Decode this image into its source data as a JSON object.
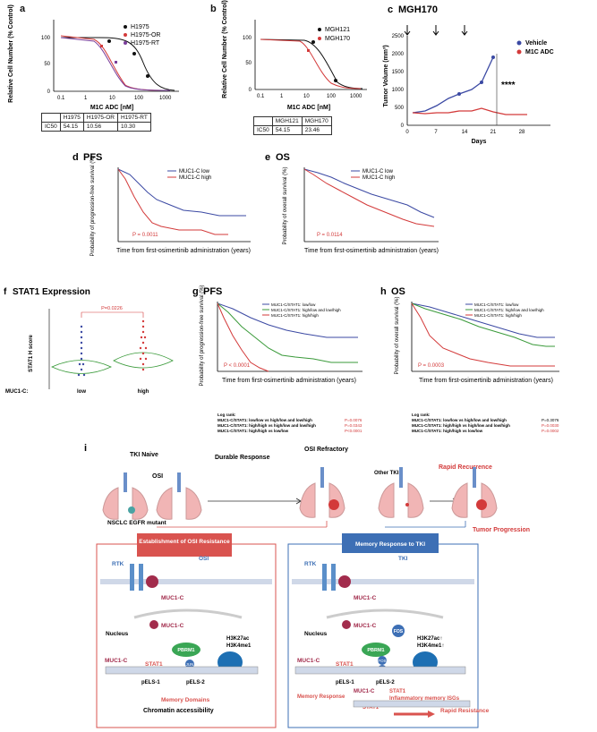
{
  "panel_a": {
    "label": "a",
    "ylabel": "Relative Cell Number (% Control)",
    "xlabel": "M1C ADC [nM]",
    "legend": [
      "H1975",
      "H1975-OR",
      "H1975-RT"
    ],
    "table_header": [
      "",
      "H1975",
      "H1975-OR",
      "H1975-RT"
    ],
    "table_row": [
      "IC50",
      "54.15",
      "10.56",
      "10.30"
    ],
    "yticks": [
      "0",
      "50",
      "100"
    ],
    "xticks": [
      "0.1",
      "1",
      "10",
      "100",
      "1000"
    ]
  },
  "panel_b": {
    "label": "b",
    "ylabel": "Relative Cell Number (% Control)",
    "xlabel": "M1C ADC [nM]",
    "legend": [
      "MGH121",
      "MGH170"
    ],
    "table_header": [
      "",
      "MGH121",
      "MGH170"
    ],
    "table_row": [
      "IC50",
      "54.15",
      "23.46"
    ],
    "yticks": [
      "0",
      "50",
      "100"
    ],
    "xticks": [
      "0.1",
      "1",
      "10",
      "100",
      "1000"
    ]
  },
  "panel_c": {
    "label": "c",
    "title": "MGH170",
    "ylabel": "Tumor Volume (mm³)",
    "xlabel": "Days",
    "legend": [
      "Vehicle",
      "M1C ADC"
    ],
    "significance": "****",
    "yticks": [
      "0",
      "500",
      "1000",
      "1500",
      "2000",
      "2500"
    ],
    "xticks": [
      "0",
      "7",
      "14",
      "21",
      "28"
    ]
  },
  "panel_d": {
    "label": "d",
    "title": "PFS",
    "ylabel": "Probability of progression-free survival (%)",
    "xlabel": "Time from first-osimertinib administration (years)",
    "legend": [
      "MUC1-C low",
      "MUC1-C high"
    ],
    "pvalue": "P = 0.0011",
    "yticks": [
      "0",
      "20",
      "40",
      "60",
      "80",
      "100"
    ],
    "xticks": [
      "0",
      "1",
      "2",
      "3",
      "4",
      "5"
    ]
  },
  "panel_e": {
    "label": "e",
    "title": "OS",
    "ylabel": "Probability of overall survival (%)",
    "xlabel": "Time from first-osimertinib administration (years)",
    "legend": [
      "MUC1-C low",
      "MUC1-C high"
    ],
    "pvalue": "P = 0.0114",
    "yticks": [
      "0",
      "20",
      "40",
      "60",
      "80",
      "100"
    ],
    "xticks": [
      "0",
      "1",
      "2",
      "3",
      "4",
      "5",
      "6"
    ]
  },
  "panel_f": {
    "label": "f",
    "title": "STAT1 Expression",
    "ylabel": "STAT1 H score",
    "pvalue": "P=0.0226",
    "row_label": "MUC1-C:",
    "categories": [
      "low",
      "high"
    ]
  },
  "panel_g": {
    "label": "g",
    "title": "PFS",
    "ylabel": "Probability of progression-free survival (%)",
    "xlabel": "Time from first-osimertinib administration (years)",
    "legend": [
      "MUC1-C/STAT1: low/low",
      "MUC1-C/STAT1: high/low and low/high",
      "MUC1-C/STAT1: high/high"
    ],
    "pvalue": "P < 0.0001",
    "logrank_title": "Log rank:",
    "logrank": [
      {
        "label": "MUC1-C/STAT1: low/low vs high/low and low/high",
        "p": "P=0.0076"
      },
      {
        "label": "MUC1-C/STAT1: high/high vs high/low and low/high",
        "p": "P=0.0343"
      },
      {
        "label": "MUC1-C/STAT1: high/high vs low/low",
        "p": "P<0.0001"
      }
    ],
    "yticks": [
      "0",
      "20",
      "40",
      "60",
      "80",
      "100"
    ],
    "xticks": [
      "0",
      "1",
      "2",
      "3",
      "4",
      "5"
    ]
  },
  "panel_h": {
    "label": "h",
    "title": "OS",
    "ylabel": "Probability of overall survival (%)",
    "xlabel": "Time from first-osimertinib administration (years)",
    "legend": [
      "MUC1-C/STAT1: low/low",
      "MUC1-C/STAT1: high/low and low/high",
      "MUC1-C/STAT1: high/high"
    ],
    "pvalue": "P = 0.0003",
    "logrank_title": "Log rank:",
    "logrank": [
      {
        "label": "MUC1-C/STAT1: low/low vs high/low and low/high",
        "p": "P=0.3076"
      },
      {
        "label": "MUC1-C/STAT1: high/high vs high/low and low/high",
        "p": "P=0.0030"
      },
      {
        "label": "MUC1-C/STAT1: high/high vs low/low",
        "p": "P=0.0002"
      }
    ],
    "yticks": [
      "0",
      "20",
      "40",
      "60",
      "80",
      "100"
    ],
    "xticks": [
      "0",
      "1",
      "2",
      "3",
      "4",
      "5",
      "6"
    ]
  },
  "panel_i": {
    "label": "i",
    "tki_naive": "TKI Naive",
    "osi": "OSI",
    "durable": "Durable Response",
    "osi_refractory": "OSI Refractory",
    "other_tkis": "Other TKIs",
    "rapid_recurrence": "Rapid Recurrence",
    "nsclc": "NSCLC EGFR mutant",
    "tumor_progression": "Tumor Progression",
    "left_box_title": "Establishment of OSI Resistance",
    "right_box_title": "Memory Response to TKI",
    "rtk": "RTK",
    "osi_drug": "OSI",
    "tki_drug": "TKI",
    "muc1c": "MUC1-C",
    "nucleus": "Nucleus",
    "pbrm1": "PBRM1",
    "jun": "JUN",
    "fos": "FOS",
    "stat1": "STAT1",
    "h3k27ac": "H3K27ac",
    "h3k4me1": "H3K4me1",
    "h3k27ac_up": "H3K27ac↑",
    "h3k4me1_up": "H3K4me1↑",
    "pels1": "pELS-1",
    "pels2": "pELS-2",
    "memory_domains": "Memory Domains",
    "chromatin": "Chromatin accessibility",
    "memory_response": "Memory Response",
    "inflammatory": "Inflammatory memory ISGs",
    "rapid_resistance": "Rapid Resistance"
  },
  "colors": {
    "blue": "#3b49a3",
    "red": "#d33a3a",
    "green": "#3a9a3a",
    "box_red": "#d9534f",
    "box_blue": "#3d6fb5"
  }
}
